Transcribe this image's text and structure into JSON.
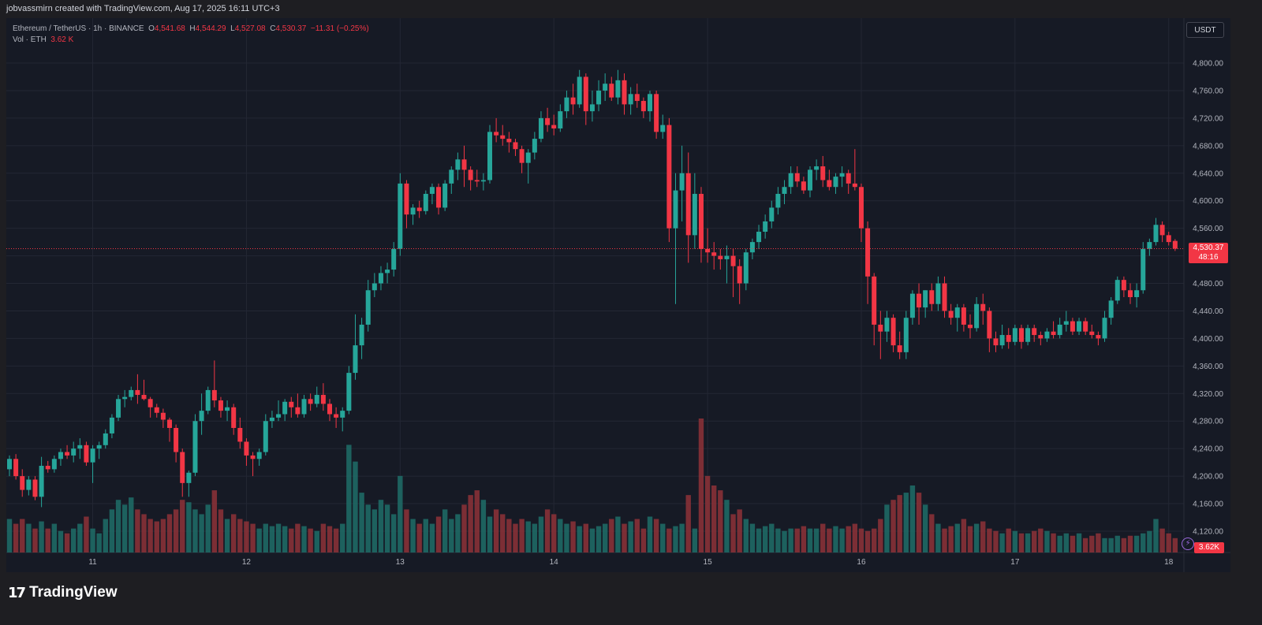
{
  "header": {
    "attribution": "jobvassmirn created with TradingView.com, Aug 17, 2025 16:11 UTC+3"
  },
  "legend": {
    "symbol": "Ethereum / TetherUS · 1h · BINANCE",
    "open_label": "O",
    "open": "4,541.68",
    "high_label": "H",
    "high": "4,544.29",
    "low_label": "L",
    "low": "4,527.08",
    "close_label": "C",
    "close": "4,530.37",
    "change": "−11.31 (−0.25%)",
    "vol_label": "Vol · ETH",
    "vol_value": "3.62 K"
  },
  "currency_button": "USDT",
  "last_price": {
    "value": "4,530.37",
    "countdown": "48:16"
  },
  "volume_tag": "3.62K",
  "footer": {
    "brand": "TradingView",
    "logo_mark": "17"
  },
  "colors": {
    "up": "#26a69a",
    "down": "#f23645",
    "bg": "#161a25",
    "grid": "#232734",
    "text": "#b2b5be"
  },
  "icons": {
    "bolt": "lightning-bolt-icon"
  },
  "chart_data": {
    "type": "candlestick",
    "title": "Ethereum / TetherUS · 1h · BINANCE",
    "price_axis": {
      "min": 4100,
      "max": 4820,
      "ticks": [
        4120,
        4160,
        4200,
        4240,
        4280,
        4320,
        4360,
        4400,
        4440,
        4480,
        4520,
        4560,
        4600,
        4640,
        4680,
        4720,
        4760,
        4800
      ],
      "tick_labels": [
        "4,120.00",
        "4,160.00",
        "4,200.00",
        "4,240.00",
        "4,280.00",
        "4,320.00",
        "4,360.00",
        "4,400.00",
        "4,440.00",
        "4,480.00",
        "4,520.00",
        "4,560.00",
        "4,600.00",
        "4,640.00",
        "4,680.00",
        "4,720.00",
        "4,760.00",
        "4,800.00"
      ]
    },
    "x_axis": {
      "labels": [
        "11",
        "12",
        "13",
        "14",
        "15",
        "16",
        "17",
        "18"
      ],
      "label_bar_index": [
        13,
        37,
        61,
        85,
        109,
        133,
        157,
        181
      ]
    },
    "last_close": 4530.37,
    "candles": [
      [
        4210,
        4230,
        4200,
        4225
      ],
      [
        4225,
        4232,
        4195,
        4200
      ],
      [
        4200,
        4210,
        4170,
        4180
      ],
      [
        4180,
        4200,
        4172,
        4195
      ],
      [
        4195,
        4200,
        4165,
        4170
      ],
      [
        4170,
        4228,
        4155,
        4215
      ],
      [
        4215,
        4222,
        4205,
        4210
      ],
      [
        4210,
        4230,
        4205,
        4225
      ],
      [
        4225,
        4240,
        4215,
        4235
      ],
      [
        4235,
        4245,
        4225,
        4230
      ],
      [
        4230,
        4250,
        4220,
        4240
      ],
      [
        4240,
        4255,
        4225,
        4245
      ],
      [
        4245,
        4250,
        4215,
        4220
      ],
      [
        4220,
        4245,
        4190,
        4240
      ],
      [
        4240,
        4250,
        4225,
        4245
      ],
      [
        4245,
        4268,
        4240,
        4262
      ],
      [
        4262,
        4290,
        4255,
        4285
      ],
      [
        4285,
        4318,
        4280,
        4312
      ],
      [
        4312,
        4325,
        4300,
        4315
      ],
      [
        4315,
        4330,
        4310,
        4325
      ],
      [
        4325,
        4348,
        4305,
        4318
      ],
      [
        4318,
        4340,
        4310,
        4312
      ],
      [
        4312,
        4315,
        4285,
        4300
      ],
      [
        4300,
        4305,
        4285,
        4292
      ],
      [
        4292,
        4298,
        4270,
        4282
      ],
      [
        4282,
        4285,
        4250,
        4270
      ],
      [
        4270,
        4275,
        4220,
        4235
      ],
      [
        4235,
        4240,
        4170,
        4190
      ],
      [
        4190,
        4208,
        4170,
        4205
      ],
      [
        4205,
        4290,
        4200,
        4280
      ],
      [
        4280,
        4320,
        4260,
        4295
      ],
      [
        4295,
        4330,
        4290,
        4325
      ],
      [
        4325,
        4368,
        4300,
        4310
      ],
      [
        4310,
        4315,
        4285,
        4295
      ],
      [
        4295,
        4310,
        4280,
        4300
      ],
      [
        4300,
        4305,
        4260,
        4270
      ],
      [
        4270,
        4285,
        4240,
        4250
      ],
      [
        4250,
        4255,
        4215,
        4230
      ],
      [
        4230,
        4235,
        4200,
        4225
      ],
      [
        4225,
        4240,
        4215,
        4235
      ],
      [
        4235,
        4290,
        4230,
        4280
      ],
      [
        4280,
        4295,
        4270,
        4285
      ],
      [
        4285,
        4310,
        4280,
        4290
      ],
      [
        4290,
        4312,
        4280,
        4308
      ],
      [
        4308,
        4315,
        4285,
        4300
      ],
      [
        4300,
        4320,
        4285,
        4290
      ],
      [
        4290,
        4318,
        4285,
        4312
      ],
      [
        4312,
        4320,
        4295,
        4305
      ],
      [
        4305,
        4330,
        4300,
        4318
      ],
      [
        4318,
        4335,
        4295,
        4305
      ],
      [
        4305,
        4312,
        4280,
        4290
      ],
      [
        4290,
        4300,
        4270,
        4285
      ],
      [
        4285,
        4300,
        4265,
        4295
      ],
      [
        4295,
        4360,
        4290,
        4350
      ],
      [
        4350,
        4435,
        4340,
        4390
      ],
      [
        4390,
        4430,
        4370,
        4420
      ],
      [
        4420,
        4485,
        4410,
        4470
      ],
      [
        4470,
        4495,
        4460,
        4480
      ],
      [
        4480,
        4505,
        4470,
        4495
      ],
      [
        4495,
        4510,
        4480,
        4500
      ],
      [
        4500,
        4540,
        4490,
        4530
      ],
      [
        4530,
        4640,
        4520,
        4625
      ],
      [
        4625,
        4630,
        4560,
        4580
      ],
      [
        4580,
        4595,
        4565,
        4590
      ],
      [
        4590,
        4600,
        4575,
        4585
      ],
      [
        4585,
        4615,
        4580,
        4610
      ],
      [
        4610,
        4625,
        4595,
        4620
      ],
      [
        4620,
        4625,
        4580,
        4590
      ],
      [
        4590,
        4630,
        4585,
        4625
      ],
      [
        4625,
        4650,
        4610,
        4645
      ],
      [
        4645,
        4670,
        4630,
        4660
      ],
      [
        4660,
        4680,
        4620,
        4645
      ],
      [
        4645,
        4650,
        4615,
        4630
      ],
      [
        4630,
        4645,
        4620,
        4628
      ],
      [
        4628,
        4640,
        4615,
        4630
      ],
      [
        4630,
        4710,
        4625,
        4700
      ],
      [
        4700,
        4720,
        4685,
        4695
      ],
      [
        4695,
        4710,
        4680,
        4690
      ],
      [
        4690,
        4700,
        4670,
        4685
      ],
      [
        4685,
        4690,
        4665,
        4675
      ],
      [
        4675,
        4680,
        4640,
        4655
      ],
      [
        4655,
        4675,
        4625,
        4670
      ],
      [
        4670,
        4700,
        4660,
        4690
      ],
      [
        4690,
        4730,
        4685,
        4720
      ],
      [
        4720,
        4735,
        4700,
        4710
      ],
      [
        4710,
        4725,
        4695,
        4705
      ],
      [
        4705,
        4740,
        4700,
        4730
      ],
      [
        4730,
        4760,
        4720,
        4750
      ],
      [
        4750,
        4770,
        4725,
        4740
      ],
      [
        4740,
        4790,
        4735,
        4780
      ],
      [
        4780,
        4785,
        4710,
        4730
      ],
      [
        4730,
        4760,
        4715,
        4740
      ],
      [
        4740,
        4775,
        4730,
        4760
      ],
      [
        4760,
        4785,
        4745,
        4770
      ],
      [
        4770,
        4780,
        4745,
        4750
      ],
      [
        4750,
        4790,
        4740,
        4775
      ],
      [
        4775,
        4785,
        4725,
        4740
      ],
      [
        4740,
        4765,
        4725,
        4755
      ],
      [
        4755,
        4770,
        4735,
        4745
      ],
      [
        4745,
        4750,
        4720,
        4730
      ],
      [
        4730,
        4760,
        4715,
        4755
      ],
      [
        4755,
        4760,
        4690,
        4700
      ],
      [
        4700,
        4725,
        4690,
        4710
      ],
      [
        4710,
        4720,
        4540,
        4560
      ],
      [
        4560,
        4640,
        4450,
        4615
      ],
      [
        4615,
        4680,
        4570,
        4640
      ],
      [
        4640,
        4670,
        4510,
        4550
      ],
      [
        4550,
        4640,
        4530,
        4610
      ],
      [
        4610,
        4620,
        4510,
        4530
      ],
      [
        4530,
        4560,
        4510,
        4525
      ],
      [
        4525,
        4540,
        4500,
        4520
      ],
      [
        4520,
        4530,
        4500,
        4515
      ],
      [
        4515,
        4535,
        4480,
        4520
      ],
      [
        4520,
        4530,
        4460,
        4505
      ],
      [
        4505,
        4515,
        4450,
        4480
      ],
      [
        4480,
        4530,
        4470,
        4525
      ],
      [
        4525,
        4545,
        4515,
        4540
      ],
      [
        4540,
        4565,
        4530,
        4555
      ],
      [
        4555,
        4580,
        4545,
        4570
      ],
      [
        4570,
        4600,
        4560,
        4590
      ],
      [
        4590,
        4620,
        4580,
        4610
      ],
      [
        4610,
        4630,
        4595,
        4620
      ],
      [
        4620,
        4650,
        4610,
        4640
      ],
      [
        4640,
        4650,
        4620,
        4628
      ],
      [
        4628,
        4635,
        4610,
        4615
      ],
      [
        4615,
        4650,
        4605,
        4645
      ],
      [
        4645,
        4660,
        4630,
        4650
      ],
      [
        4650,
        4665,
        4620,
        4630
      ],
      [
        4630,
        4645,
        4615,
        4620
      ],
      [
        4620,
        4640,
        4610,
        4635
      ],
      [
        4635,
        4650,
        4620,
        4640
      ],
      [
        4640,
        4645,
        4610,
        4625
      ],
      [
        4625,
        4675,
        4615,
        4620
      ],
      [
        4620,
        4625,
        4540,
        4560
      ],
      [
        4560,
        4570,
        4450,
        4490
      ],
      [
        4490,
        4495,
        4390,
        4420
      ],
      [
        4420,
        4440,
        4370,
        4410
      ],
      [
        4410,
        4440,
        4395,
        4430
      ],
      [
        4430,
        4435,
        4380,
        4390
      ],
      [
        4390,
        4410,
        4370,
        4380
      ],
      [
        4380,
        4440,
        4370,
        4430
      ],
      [
        4430,
        4470,
        4420,
        4465
      ],
      [
        4465,
        4480,
        4420,
        4445
      ],
      [
        4445,
        4470,
        4430,
        4470
      ],
      [
        4470,
        4480,
        4440,
        4450
      ],
      [
        4450,
        4490,
        4440,
        4480
      ],
      [
        4480,
        4490,
        4430,
        4440
      ],
      [
        4440,
        4450,
        4420,
        4430
      ],
      [
        4430,
        4450,
        4410,
        4445
      ],
      [
        4445,
        4450,
        4410,
        4420
      ],
      [
        4420,
        4435,
        4400,
        4415
      ],
      [
        4415,
        4460,
        4410,
        4450
      ],
      [
        4450,
        4465,
        4420,
        4440
      ],
      [
        4440,
        4445,
        4380,
        4400
      ],
      [
        4400,
        4410,
        4380,
        4390
      ],
      [
        4390,
        4420,
        4385,
        4405
      ],
      [
        4405,
        4415,
        4385,
        4395
      ],
      [
        4395,
        4420,
        4390,
        4415
      ],
      [
        4415,
        4420,
        4385,
        4395
      ],
      [
        4395,
        4420,
        4390,
        4415
      ],
      [
        4415,
        4420,
        4395,
        4405
      ],
      [
        4405,
        4410,
        4390,
        4400
      ],
      [
        4400,
        4415,
        4395,
        4410
      ],
      [
        4410,
        4425,
        4400,
        4405
      ],
      [
        4405,
        4430,
        4400,
        4420
      ],
      [
        4420,
        4440,
        4410,
        4425
      ],
      [
        4425,
        4430,
        4405,
        4410
      ],
      [
        4410,
        4430,
        4405,
        4425
      ],
      [
        4425,
        4430,
        4405,
        4410
      ],
      [
        4410,
        4420,
        4400,
        4405
      ],
      [
        4405,
        4410,
        4390,
        4400
      ],
      [
        4400,
        4440,
        4395,
        4430
      ],
      [
        4430,
        4460,
        4420,
        4455
      ],
      [
        4455,
        4490,
        4450,
        4485
      ],
      [
        4485,
        4490,
        4460,
        4470
      ],
      [
        4470,
        4480,
        4450,
        4460
      ],
      [
        4460,
        4480,
        4445,
        4470
      ],
      [
        4470,
        4540,
        4465,
        4530
      ],
      [
        4530,
        4545,
        4520,
        4540
      ],
      [
        4540,
        4575,
        4535,
        4565
      ],
      [
        4565,
        4570,
        4540,
        4550
      ],
      [
        4550,
        4555,
        4535,
        4540
      ],
      [
        4541.68,
        4544.29,
        4527.08,
        4530.37
      ]
    ],
    "volume": [
      14,
      12,
      14,
      12,
      10,
      13,
      10,
      12,
      9,
      8,
      10,
      12,
      15,
      10,
      8,
      14,
      18,
      22,
      20,
      23,
      18,
      16,
      14,
      13,
      14,
      16,
      18,
      22,
      21,
      18,
      16,
      20,
      26,
      18,
      14,
      16,
      14,
      13,
      12,
      10,
      12,
      11,
      12,
      11,
      10,
      12,
      11,
      10,
      9,
      12,
      11,
      10,
      12,
      45,
      38,
      25,
      20,
      18,
      22,
      20,
      16,
      32,
      18,
      14,
      12,
      14,
      12,
      15,
      18,
      14,
      16,
      20,
      24,
      26,
      22,
      15,
      18,
      16,
      14,
      12,
      14,
      13,
      12,
      15,
      18,
      16,
      14,
      12,
      13,
      11,
      12,
      10,
      11,
      12,
      14,
      15,
      12,
      13,
      14,
      10,
      15,
      14,
      12,
      10,
      11,
      12,
      24,
      10,
      56,
      32,
      28,
      26,
      22,
      16,
      18,
      14,
      12,
      10,
      11,
      12,
      10,
      9,
      10,
      10,
      11,
      10,
      10,
      12,
      10,
      11,
      10,
      11,
      12,
      10,
      9,
      10,
      14,
      20,
      22,
      24,
      25,
      28,
      25,
      20,
      16,
      12,
      10,
      11,
      12,
      14,
      11,
      12,
      13,
      10,
      9,
      8,
      10,
      9,
      8,
      8,
      9,
      10,
      9,
      8,
      7,
      8,
      7,
      8,
      6,
      7,
      8,
      6,
      6,
      7,
      6,
      7,
      7,
      8,
      9,
      14,
      10,
      8,
      6,
      9,
      12,
      14,
      13,
      9
    ]
  }
}
